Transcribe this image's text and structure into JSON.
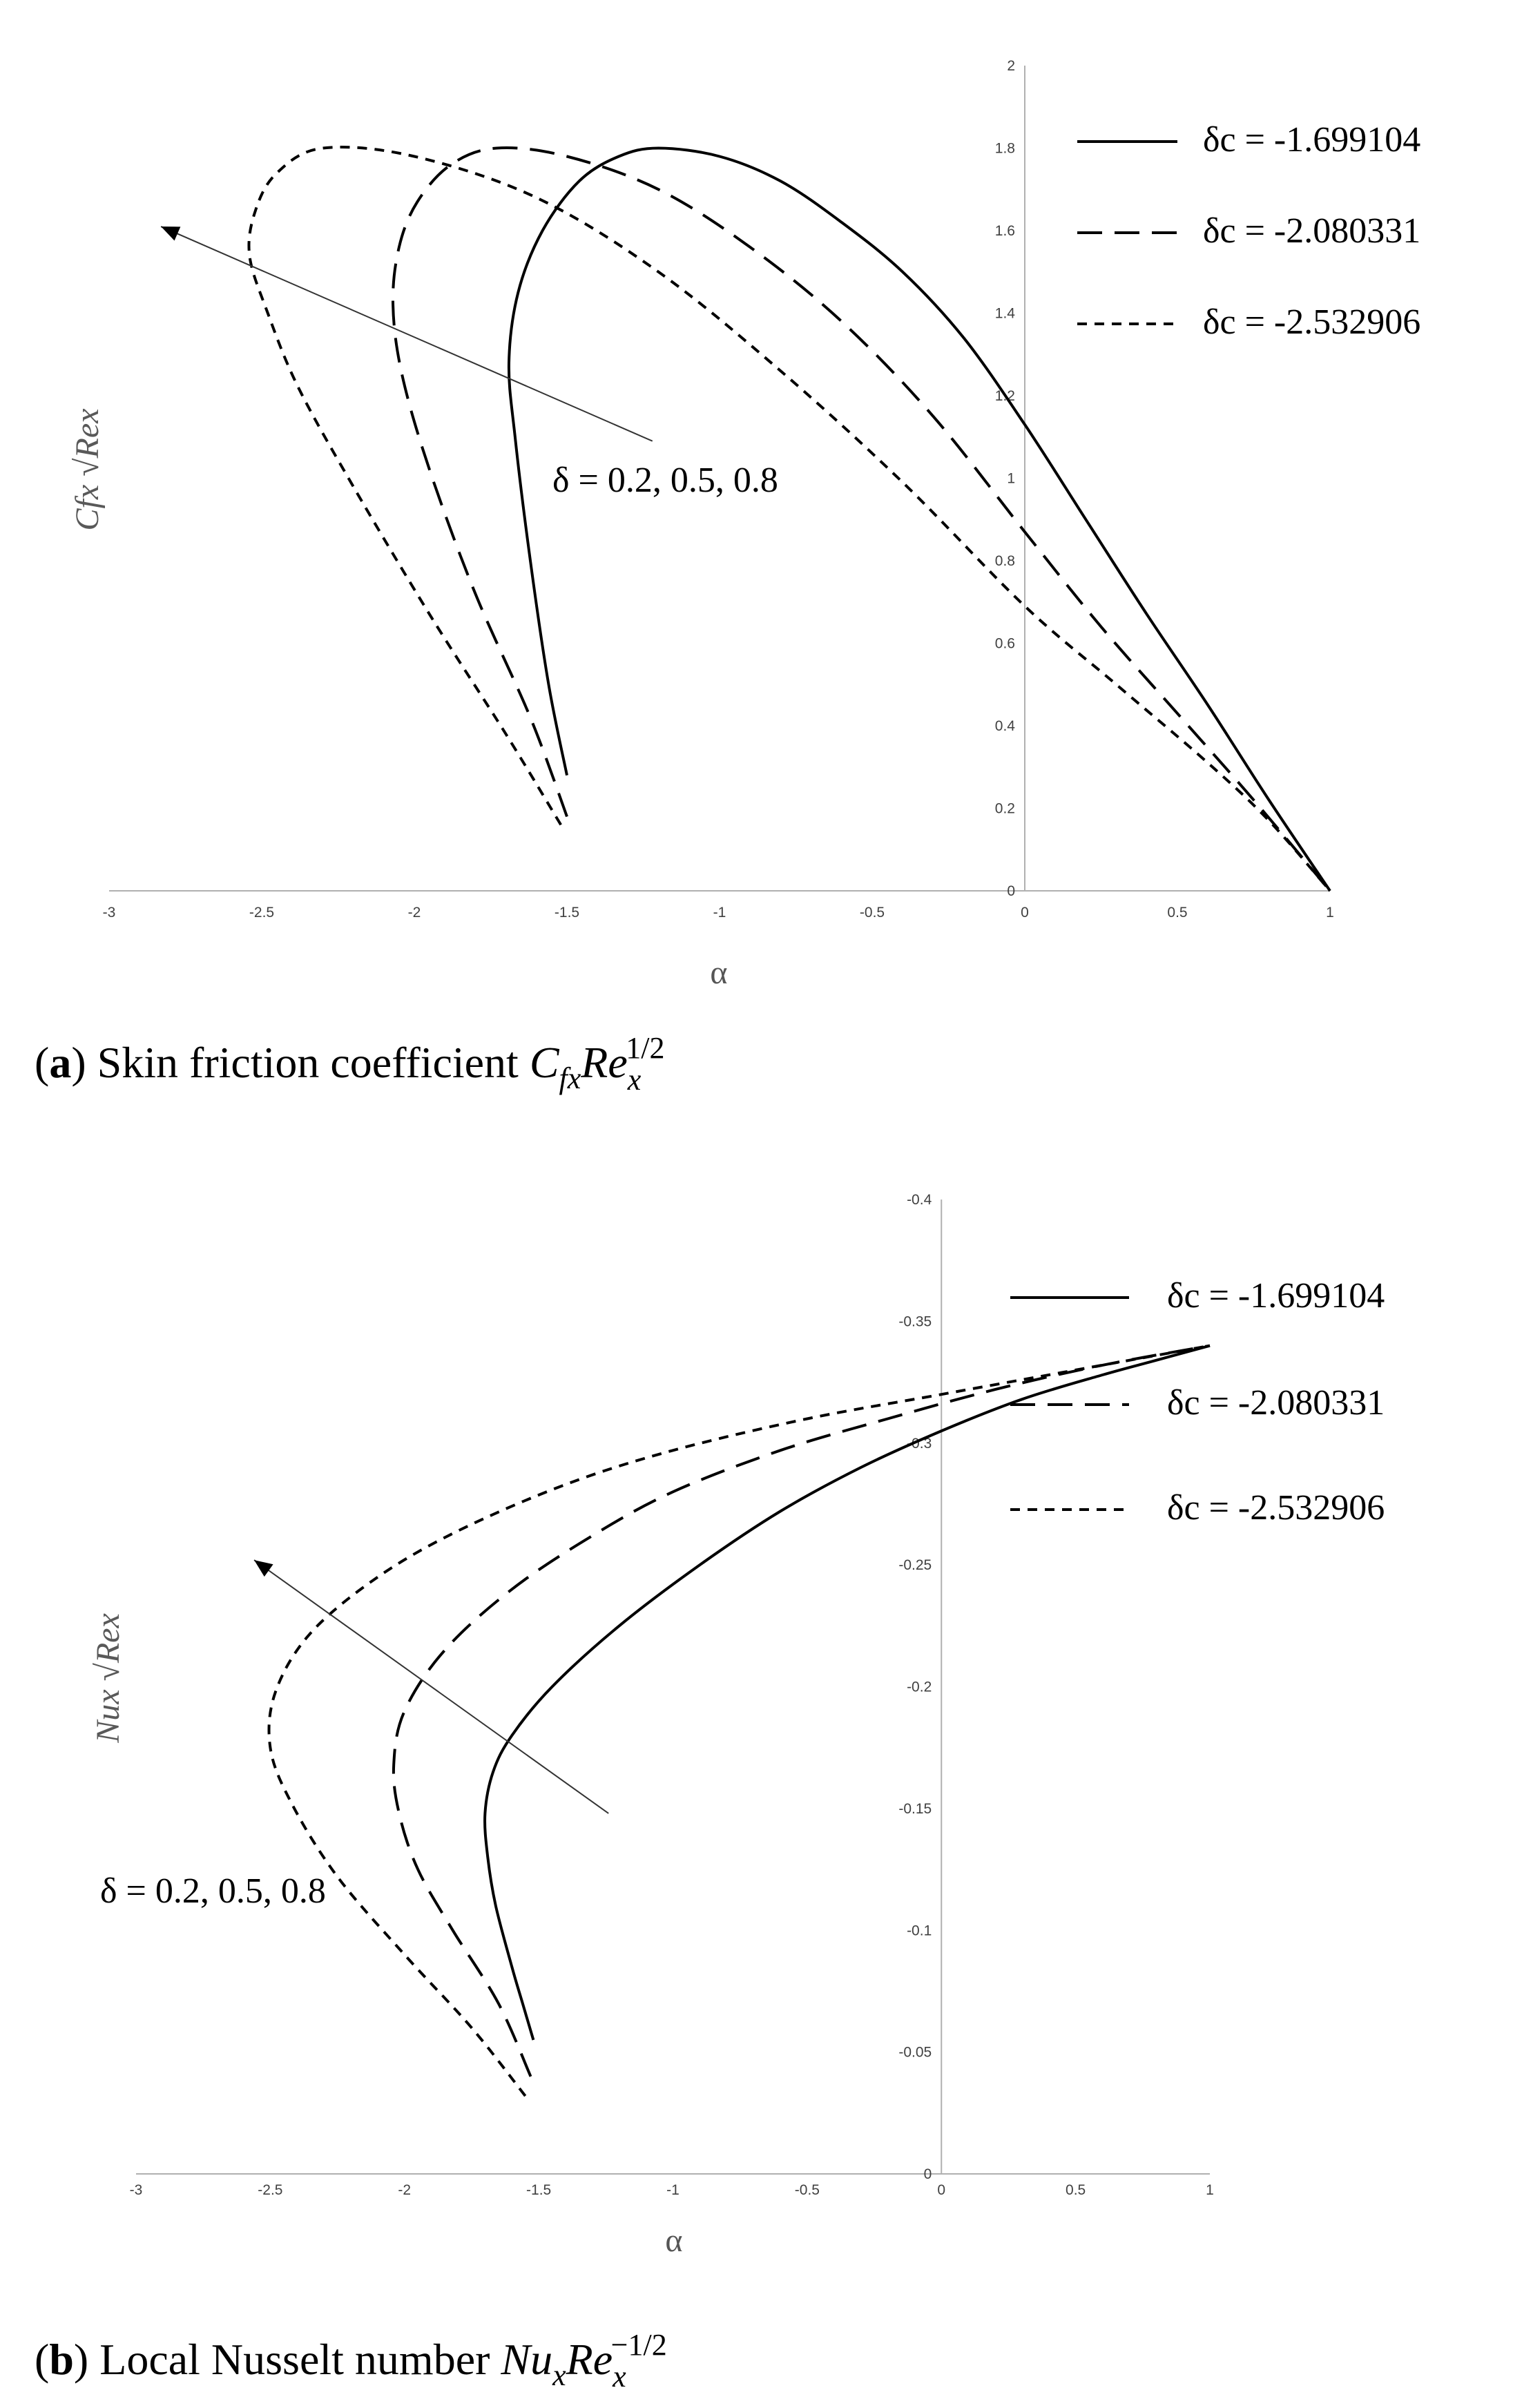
{
  "chart_data": [
    {
      "type": "line",
      "panel": "a",
      "caption": {
        "label": "a",
        "text": "Skin friction coefficient",
        "symbol": "C",
        "symbol_sub": "fx",
        "symbol2": "Re",
        "symbol2_sub": "x",
        "symbol2_sup": "1/2"
      },
      "xlabel": "α",
      "ylabel": "Cfx √Rex",
      "xlim": [
        -3,
        1
      ],
      "ylim": [
        0,
        2
      ],
      "xticks": [
        "-3",
        "-2.5",
        "-2",
        "-1.5",
        "-1",
        "-0.5",
        "0",
        "0.5",
        "1"
      ],
      "yticks": [
        "0",
        "0.2",
        "0.4",
        "0.6",
        "0.8",
        "1",
        "1.2",
        "1.4",
        "1.6",
        "1.8",
        "2"
      ],
      "legend_position": "top-right",
      "annotation": "δ = 0.2, 0.5, 0.8",
      "series": [
        {
          "name": "δc = -1.699104",
          "style": "solid",
          "points": [
            [
              -1.5,
              0.28
            ],
            [
              -1.56,
              0.5
            ],
            [
              -1.62,
              0.8
            ],
            [
              -1.67,
              1.1
            ],
            [
              -1.69,
              1.28
            ],
            [
              -1.66,
              1.45
            ],
            [
              -1.58,
              1.6
            ],
            [
              -1.46,
              1.72
            ],
            [
              -1.33,
              1.78
            ],
            [
              -1.2,
              1.8
            ],
            [
              -1.0,
              1.78
            ],
            [
              -0.8,
              1.72
            ],
            [
              -0.6,
              1.62
            ],
            [
              -0.4,
              1.5
            ],
            [
              -0.2,
              1.34
            ],
            [
              0.0,
              1.13
            ],
            [
              0.2,
              0.9
            ],
            [
              0.4,
              0.67
            ],
            [
              0.6,
              0.45
            ],
            [
              0.8,
              0.22
            ],
            [
              1.0,
              0.0
            ]
          ]
        },
        {
          "name": "δc = -2.080331",
          "style": "long-dash",
          "points": [
            [
              -1.5,
              0.18
            ],
            [
              -1.62,
              0.42
            ],
            [
              -1.8,
              0.72
            ],
            [
              -1.95,
              1.02
            ],
            [
              -2.04,
              1.25
            ],
            [
              -2.07,
              1.42
            ],
            [
              -2.05,
              1.56
            ],
            [
              -1.99,
              1.67
            ],
            [
              -1.88,
              1.76
            ],
            [
              -1.73,
              1.8
            ],
            [
              -1.5,
              1.78
            ],
            [
              -1.2,
              1.7
            ],
            [
              -0.9,
              1.56
            ],
            [
              -0.6,
              1.38
            ],
            [
              -0.3,
              1.15
            ],
            [
              0.0,
              0.87
            ],
            [
              0.25,
              0.64
            ],
            [
              0.5,
              0.43
            ],
            [
              0.75,
              0.22
            ],
            [
              1.0,
              0.0
            ]
          ]
        },
        {
          "name": "δc = -2.532906",
          "style": "short-dash",
          "points": [
            [
              -1.52,
              0.16
            ],
            [
              -1.7,
              0.38
            ],
            [
              -1.95,
              0.67
            ],
            [
              -2.2,
              0.98
            ],
            [
              -2.38,
              1.22
            ],
            [
              -2.48,
              1.4
            ],
            [
              -2.54,
              1.54
            ],
            [
              -2.52,
              1.65
            ],
            [
              -2.45,
              1.74
            ],
            [
              -2.3,
              1.8
            ],
            [
              -2.0,
              1.78
            ],
            [
              -1.6,
              1.68
            ],
            [
              -1.2,
              1.5
            ],
            [
              -0.8,
              1.26
            ],
            [
              -0.4,
              0.99
            ],
            [
              0.0,
              0.69
            ],
            [
              0.3,
              0.5
            ],
            [
              0.6,
              0.31
            ],
            [
              0.8,
              0.17
            ],
            [
              1.0,
              0.0
            ]
          ]
        }
      ],
      "arrow": {
        "from": [
          -1.22,
          1.09
        ],
        "to": [
          -2.83,
          1.61
        ]
      }
    },
    {
      "type": "line",
      "panel": "b",
      "caption": {
        "label": "b",
        "text": "Local Nusselt number",
        "symbol": "Nu",
        "symbol_sub": "x",
        "symbol2": "Re",
        "symbol2_sub": "x",
        "symbol2_sup": "−1/2"
      },
      "xlabel": "α",
      "ylabel": "Nux √Rex",
      "xlim": [
        -3,
        1
      ],
      "ylim": [
        -0.4,
        0
      ],
      "xticks": [
        "-3",
        "-2.5",
        "-2",
        "-1.5",
        "-1",
        "-0.5",
        "0",
        "0.5",
        "1"
      ],
      "yticks": [
        "0",
        "-0.05",
        "-0.1",
        "-0.15",
        "-0.2",
        "-0.25",
        "-0.3",
        "-0.35",
        "-0.4"
      ],
      "legend_position": "top-right",
      "annotation": "δ = 0.2, 0.5, 0.8",
      "series": [
        {
          "name": "δc = -1.699104",
          "style": "solid",
          "points": [
            [
              -1.52,
              -0.055
            ],
            [
              -1.56,
              -0.07
            ],
            [
              -1.6,
              -0.085
            ],
            [
              -1.66,
              -0.11
            ],
            [
              -1.69,
              -0.13
            ],
            [
              -1.7,
              -0.148
            ],
            [
              -1.67,
              -0.165
            ],
            [
              -1.6,
              -0.18
            ],
            [
              -1.45,
              -0.2
            ],
            [
              -1.2,
              -0.225
            ],
            [
              -0.9,
              -0.25
            ],
            [
              -0.6,
              -0.272
            ],
            [
              -0.3,
              -0.29
            ],
            [
              0.0,
              -0.305
            ],
            [
              0.3,
              -0.318
            ],
            [
              0.6,
              -0.328
            ],
            [
              0.8,
              -0.334
            ],
            [
              1.0,
              -0.34
            ]
          ]
        },
        {
          "name": "δc = -2.080331",
          "style": "long-dash",
          "points": [
            [
              -1.53,
              -0.04
            ],
            [
              -1.65,
              -0.07
            ],
            [
              -1.82,
              -0.1
            ],
            [
              -1.95,
              -0.125
            ],
            [
              -2.02,
              -0.148
            ],
            [
              -2.04,
              -0.168
            ],
            [
              -2.0,
              -0.19
            ],
            [
              -1.85,
              -0.215
            ],
            [
              -1.6,
              -0.24
            ],
            [
              -1.3,
              -0.262
            ],
            [
              -1.0,
              -0.28
            ],
            [
              -0.6,
              -0.297
            ],
            [
              -0.2,
              -0.31
            ],
            [
              0.2,
              -0.322
            ],
            [
              0.6,
              -0.332
            ],
            [
              1.0,
              -0.34
            ]
          ]
        },
        {
          "name": "δc = -2.532906",
          "style": "short-dash",
          "points": [
            [
              -1.55,
              -0.032
            ],
            [
              -1.75,
              -0.06
            ],
            [
              -2.0,
              -0.09
            ],
            [
              -2.25,
              -0.122
            ],
            [
              -2.42,
              -0.152
            ],
            [
              -2.5,
              -0.175
            ],
            [
              -2.48,
              -0.198
            ],
            [
              -2.35,
              -0.222
            ],
            [
              -2.1,
              -0.245
            ],
            [
              -1.8,
              -0.264
            ],
            [
              -1.4,
              -0.283
            ],
            [
              -1.0,
              -0.297
            ],
            [
              -0.5,
              -0.31
            ],
            [
              0.0,
              -0.32
            ],
            [
              0.5,
              -0.33
            ],
            [
              1.0,
              -0.34
            ]
          ]
        }
      ],
      "arrow": {
        "from": [
          -1.24,
          -0.148
        ],
        "to": [
          -2.56,
          -0.252
        ]
      }
    }
  ]
}
